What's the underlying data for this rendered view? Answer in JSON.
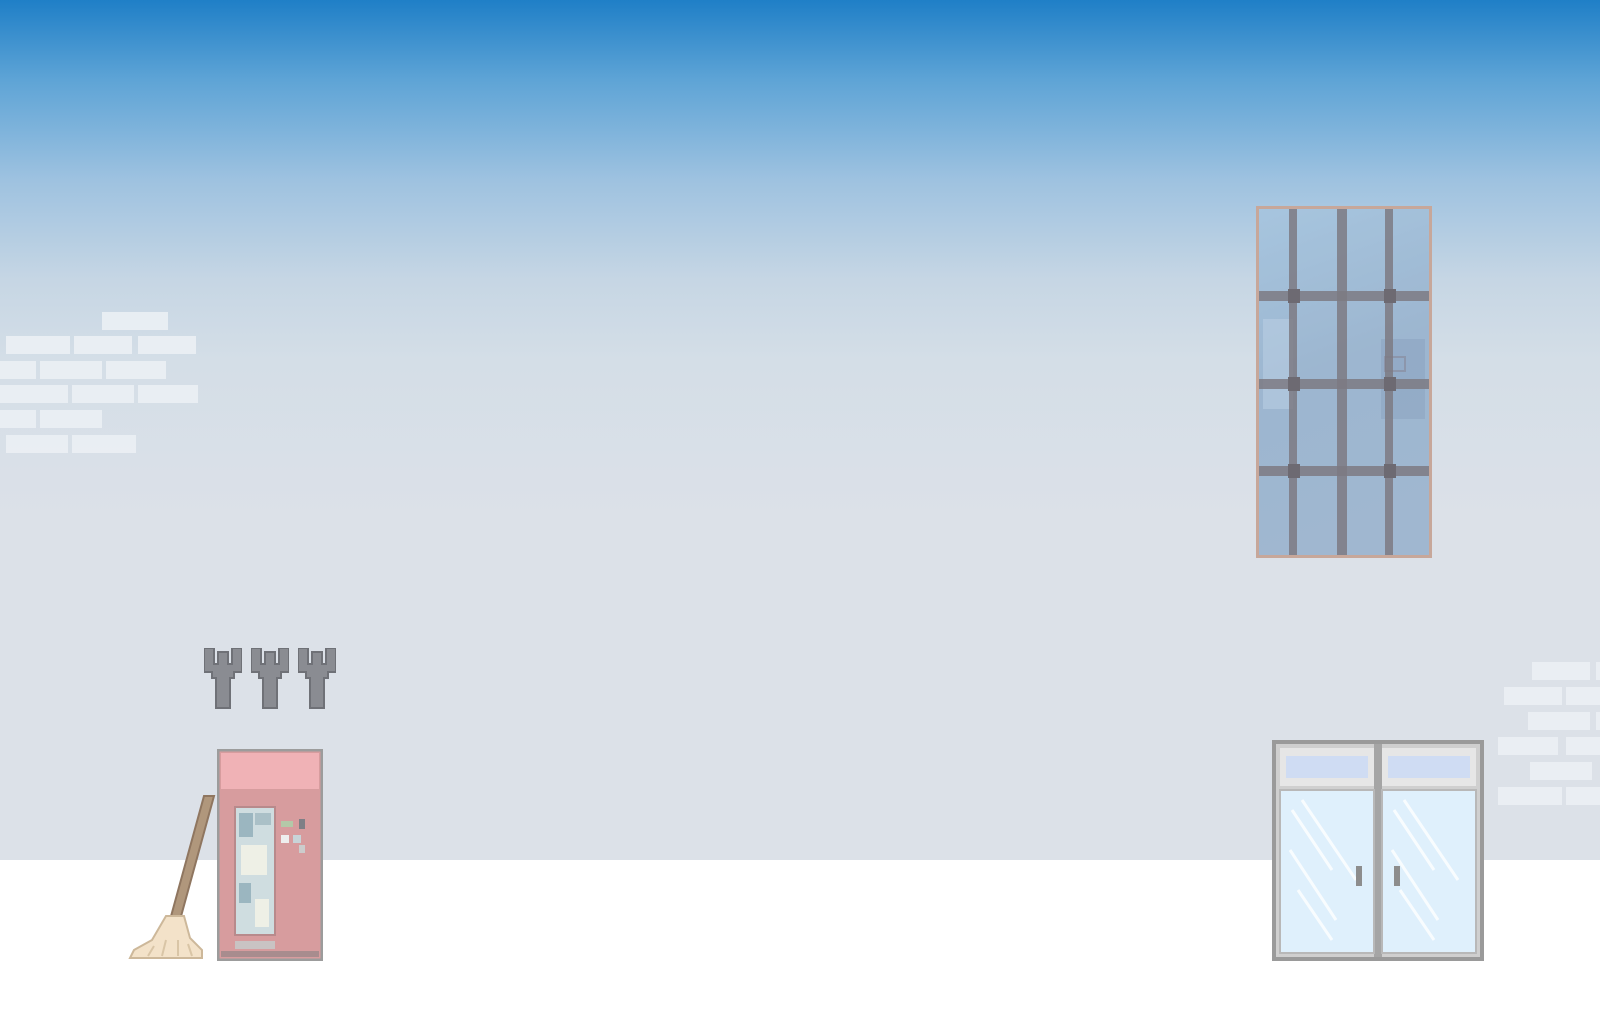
{
  "scene": {
    "name": "office-exterior-wall",
    "colors": {
      "sky_top": "#1f7fc7",
      "wall": "#dce1e8",
      "floor": "#ffffff",
      "brick": "#ebeff4",
      "window_frame": "#c7a79a",
      "window_bar": "#7c7a82",
      "vending_body": "#d79c9e",
      "vending_header": "#f0b2b6",
      "door_frame": "#9a9a9a",
      "door_glass": "#dff0fc",
      "wrench": "#8a8c92",
      "broom_handle": "#b0977c",
      "broom_head": "#f3e2c9"
    },
    "objects": {
      "wrenches": {
        "icon": "wrench-icon",
        "count": 3
      },
      "vending_machine": {
        "icon": "vending-machine-icon"
      },
      "broom": {
        "icon": "broom-icon"
      },
      "window": {
        "icon": "barred-window-icon"
      },
      "door": {
        "icon": "double-glass-door-icon"
      }
    }
  }
}
